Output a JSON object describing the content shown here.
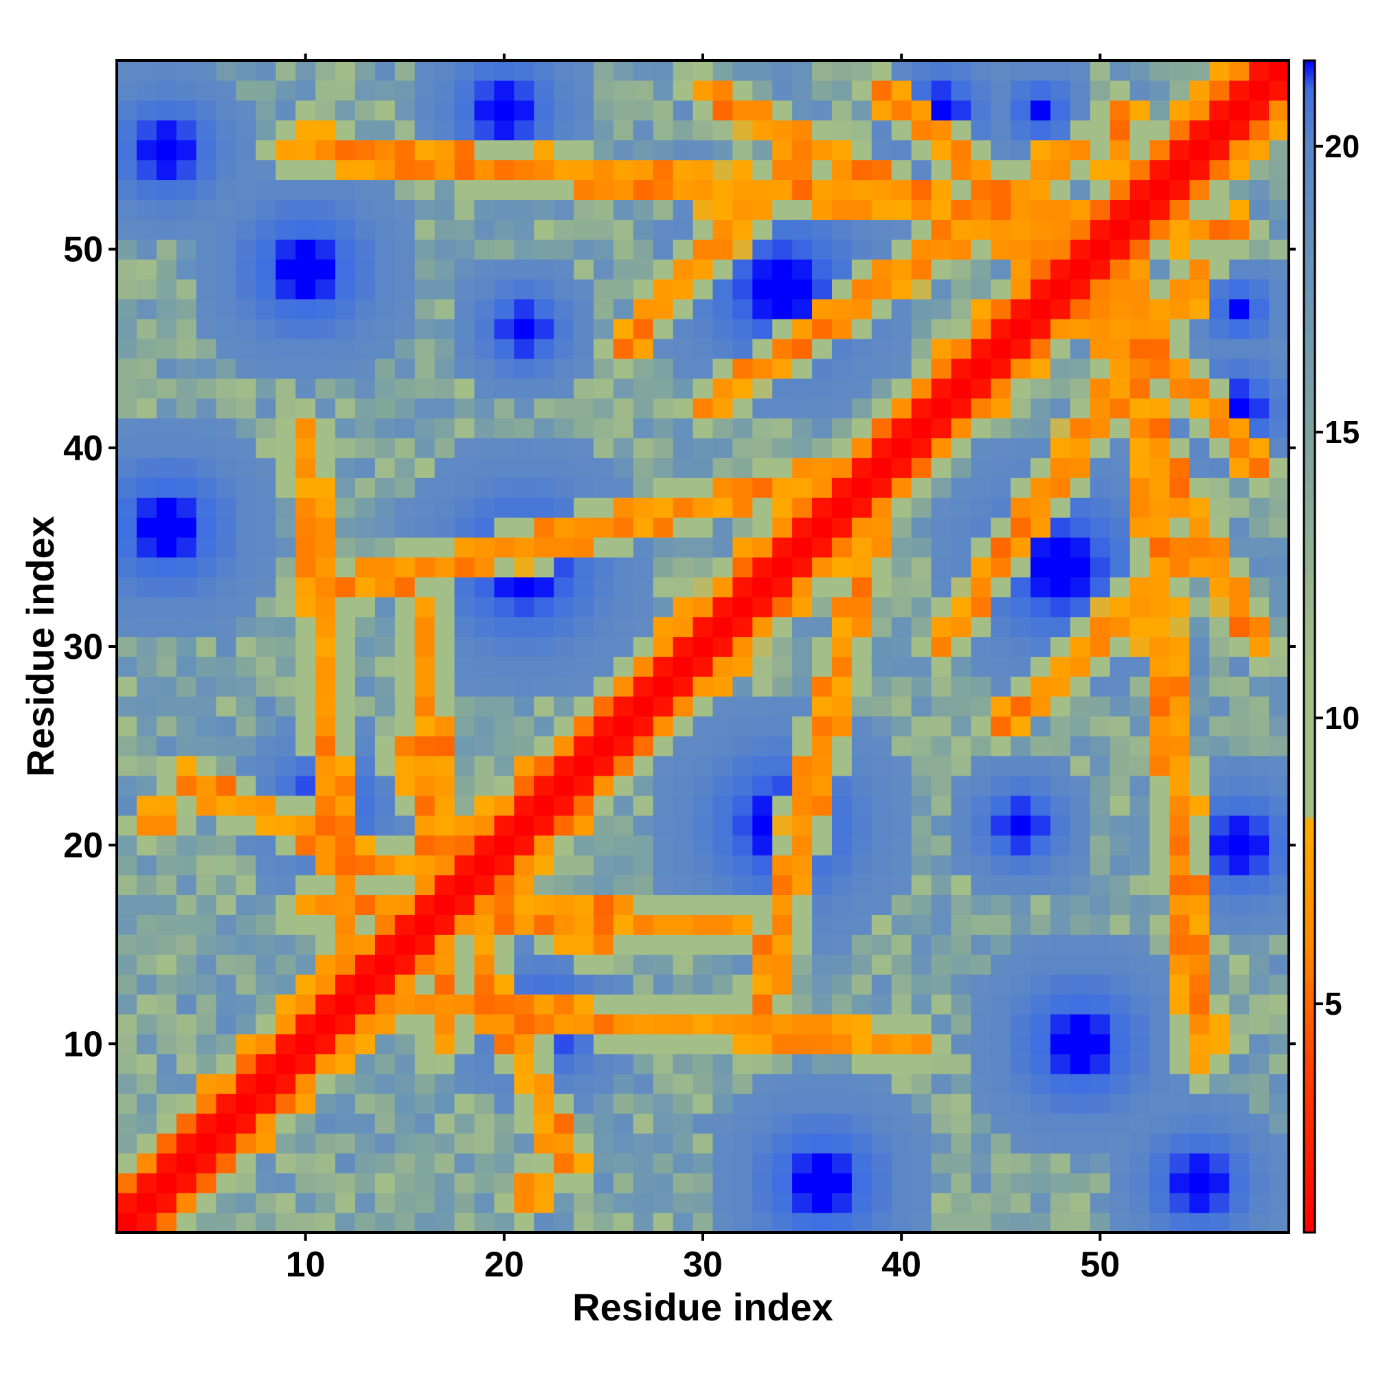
{
  "chart_data": {
    "type": "heatmap",
    "title": "",
    "xlabel": "Residue index",
    "ylabel": "Residue index",
    "n_residues": 59,
    "xlim": [
      0.5,
      59.5
    ],
    "ylim": [
      0.5,
      59.5
    ],
    "x_ticks": [
      10,
      20,
      30,
      40,
      50
    ],
    "y_ticks": [
      10,
      20,
      30,
      40,
      50
    ],
    "x_tick_labels": [
      "10",
      "20",
      "30",
      "40",
      "50"
    ],
    "y_tick_labels": [
      "10",
      "20",
      "30",
      "40",
      "50"
    ],
    "colorbar": {
      "range": [
        1,
        21.5
      ],
      "ticks": [
        5,
        10,
        15,
        20
      ],
      "tick_labels": [
        "5",
        "10",
        "15",
        "20"
      ],
      "scale": [
        {
          "value": 1.0,
          "color": "#ff0000"
        },
        {
          "value": 4.0,
          "color": "#ff4400"
        },
        {
          "value": 6.0,
          "color": "#ff8800"
        },
        {
          "value": 8.2,
          "color": "#ffaa00"
        },
        {
          "value": 8.3,
          "color": "#a4be88"
        },
        {
          "value": 11.0,
          "color": "#a4be88"
        },
        {
          "value": 14.0,
          "color": "#86a89a"
        },
        {
          "value": 17.0,
          "color": "#6e98b2"
        },
        {
          "value": 20.0,
          "color": "#5b86c8"
        },
        {
          "value": 21.0,
          "color": "#3f6fe0"
        },
        {
          "value": 21.5,
          "color": "#0000ff"
        }
      ]
    },
    "matrix_description": "Symmetric pairwise residue distance map (values in angstrom-like units, diagonal ~1, far pairs saturated >=21)",
    "contact_features": [
      {
        "type": "diagonal",
        "from": [
          1,
          1
        ],
        "to": [
          59,
          59
        ],
        "width": 1.6
      },
      {
        "type": "antiparallel",
        "from": [
          4,
          23
        ],
        "to": [
          25,
          15
        ]
      },
      {
        "type": "antiparallel",
        "from": [
          10,
          17
        ],
        "to": [
          32,
          16
        ]
      },
      {
        "type": "antiparallel",
        "from": [
          15,
          12
        ],
        "to": [
          41,
          10
        ]
      },
      {
        "type": "antiparallel",
        "from": [
          12,
          33
        ],
        "to": [
          38,
          39
        ]
      },
      {
        "type": "antiparallel",
        "from": [
          9,
          55
        ],
        "to": [
          57,
          51
        ]
      },
      {
        "type": "antiparallel",
        "from": [
          42,
          30
        ],
        "to": [
          55,
          49
        ]
      },
      {
        "type": "antiparallel",
        "from": [
          30,
          58
        ],
        "to": [
          46,
          50
        ]
      },
      {
        "type": "antiparallel",
        "from": [
          45,
          26
        ],
        "to": [
          55,
          35
        ]
      },
      {
        "type": "antiparallel",
        "from": [
          2,
          21
        ],
        "to": [
          3,
          22
        ]
      },
      {
        "type": "antiparallel",
        "from": [
          45,
          53
        ],
        "to": [
          58,
          39
        ]
      }
    ],
    "far_regions": [
      {
        "center": [
          21,
          34
        ],
        "radius": 7
      },
      {
        "center": [
          34,
          21
        ],
        "radius": 7
      },
      {
        "center": [
          34,
          48
        ],
        "radius": 7
      },
      {
        "center": [
          48,
          34
        ],
        "radius": 7
      },
      {
        "center": [
          10,
          49
        ],
        "radius": 6
      },
      {
        "center": [
          49,
          10
        ],
        "radius": 6
      },
      {
        "center": [
          11,
          22
        ],
        "radius": 5
      },
      {
        "center": [
          22,
          11
        ],
        "radius": 5
      },
      {
        "center": [
          46,
          21
        ],
        "radius": 4
      },
      {
        "center": [
          21,
          46
        ],
        "radius": 4
      },
      {
        "center": [
          3,
          36
        ],
        "radius": 6
      },
      {
        "center": [
          36,
          3
        ],
        "radius": 6
      },
      {
        "center": [
          3,
          55
        ],
        "radius": 5
      },
      {
        "center": [
          55,
          3
        ],
        "radius": 5
      },
      {
        "center": [
          57,
          20
        ],
        "radius": 5
      },
      {
        "center": [
          20,
          57
        ],
        "radius": 5
      },
      {
        "center": [
          57,
          47
        ],
        "radius": 3
      },
      {
        "center": [
          47,
          57
        ],
        "radius": 3
      },
      {
        "center": [
          20,
          57
        ],
        "radius": 4
      },
      {
        "center": [
          42,
          57
        ],
        "radius": 4
      },
      {
        "center": [
          57,
          42
        ],
        "radius": 4
      }
    ]
  }
}
